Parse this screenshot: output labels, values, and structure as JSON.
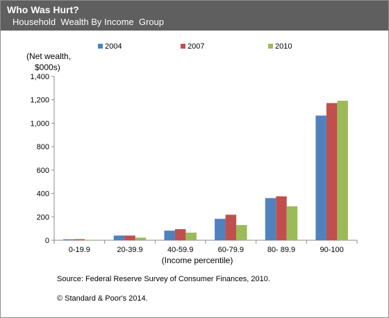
{
  "header": {
    "title": "Who Was Hurt?",
    "subtitle": "Household  Wealth By Income  Group"
  },
  "chart_data": {
    "type": "bar",
    "categories": [
      "0-19.9",
      "20-39.9",
      "40-59.9",
      "60-79.9",
      "80- 89.9",
      "90-100"
    ],
    "series": [
      {
        "name": "2004",
        "color": "#4f81bd",
        "values": [
          8,
          40,
          82,
          183,
          360,
          1065
        ]
      },
      {
        "name": "2007",
        "color": "#c0504d",
        "values": [
          9,
          40,
          95,
          218,
          375,
          1172
        ]
      },
      {
        "name": "2010",
        "color": "#9bbb59",
        "values": [
          4,
          22,
          65,
          130,
          290,
          1192
        ]
      }
    ],
    "ylabel_line1": "(Net wealth,",
    "ylabel_line2": "$000s)",
    "xlabel": "(Income percentile)",
    "ylim": [
      0,
      1400
    ],
    "yticks": [
      0,
      200,
      400,
      600,
      800,
      1000,
      1200,
      1400
    ],
    "ytick_labels": [
      "0",
      "200",
      "400",
      "600",
      "800",
      "1,000",
      "1,200",
      "1,400"
    ],
    "grid": false,
    "legend_position": "top"
  },
  "notes": {
    "source": "Source: Federal Reserve Survey of Consumer Finances, 2010.",
    "copyright": "© Standard & Poor's 2014."
  }
}
